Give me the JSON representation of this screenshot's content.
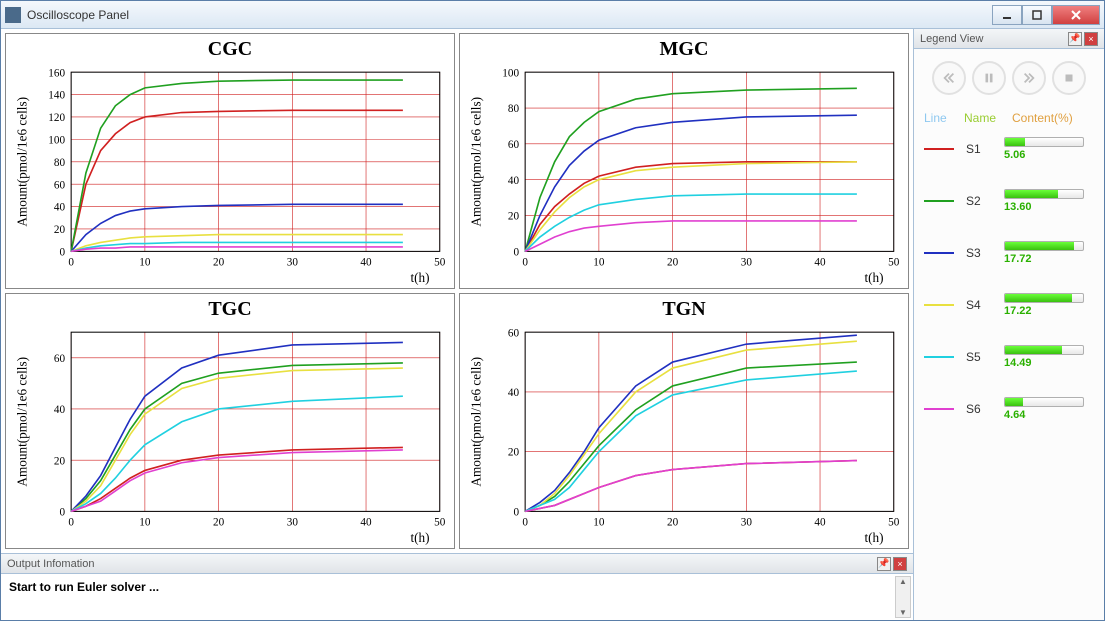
{
  "window": {
    "title": "Oscilloscope Panel"
  },
  "series_colors": {
    "S1": "#d02020",
    "S2": "#20a020",
    "S3": "#2030c0",
    "S4": "#e8e040",
    "S5": "#20d0e0",
    "S6": "#e040d0"
  },
  "charts": [
    {
      "id": "cgc",
      "title": "CGC",
      "xlabel": "t(h)",
      "ylabel": "Amount(pmol/1e6 cells)",
      "xlim": [
        0,
        50
      ],
      "xtick_step": 10,
      "ylim": [
        0,
        160
      ],
      "ytick_step": 20,
      "series": {
        "S1": [
          [
            0,
            0
          ],
          [
            2,
            60
          ],
          [
            4,
            90
          ],
          [
            6,
            105
          ],
          [
            8,
            115
          ],
          [
            10,
            120
          ],
          [
            15,
            124
          ],
          [
            20,
            125
          ],
          [
            30,
            126
          ],
          [
            45,
            126
          ]
        ],
        "S2": [
          [
            0,
            0
          ],
          [
            2,
            70
          ],
          [
            4,
            110
          ],
          [
            6,
            130
          ],
          [
            8,
            140
          ],
          [
            10,
            146
          ],
          [
            15,
            150
          ],
          [
            20,
            152
          ],
          [
            30,
            153
          ],
          [
            45,
            153
          ]
        ],
        "S3": [
          [
            0,
            0
          ],
          [
            2,
            15
          ],
          [
            4,
            25
          ],
          [
            6,
            32
          ],
          [
            8,
            36
          ],
          [
            10,
            38
          ],
          [
            15,
            40
          ],
          [
            20,
            41
          ],
          [
            30,
            42
          ],
          [
            45,
            42
          ]
        ],
        "S4": [
          [
            0,
            0
          ],
          [
            2,
            5
          ],
          [
            4,
            8
          ],
          [
            6,
            10
          ],
          [
            8,
            12
          ],
          [
            10,
            13
          ],
          [
            15,
            14
          ],
          [
            20,
            15
          ],
          [
            30,
            15
          ],
          [
            45,
            15
          ]
        ],
        "S5": [
          [
            0,
            0
          ],
          [
            2,
            3
          ],
          [
            4,
            5
          ],
          [
            6,
            6
          ],
          [
            8,
            7
          ],
          [
            10,
            7
          ],
          [
            15,
            8
          ],
          [
            20,
            8
          ],
          [
            30,
            8
          ],
          [
            45,
            8
          ]
        ],
        "S6": [
          [
            0,
            0
          ],
          [
            2,
            2
          ],
          [
            4,
            3
          ],
          [
            6,
            3
          ],
          [
            8,
            4
          ],
          [
            10,
            4
          ],
          [
            15,
            4
          ],
          [
            20,
            4
          ],
          [
            30,
            4
          ],
          [
            45,
            4
          ]
        ]
      }
    },
    {
      "id": "mgc",
      "title": "MGC",
      "xlabel": "t(h)",
      "ylabel": "Amount(pmol/1e6 cells)",
      "xlim": [
        0,
        50
      ],
      "xtick_step": 10,
      "ylim": [
        0,
        100
      ],
      "ytick_step": 20,
      "series": {
        "S1": [
          [
            0,
            0
          ],
          [
            2,
            15
          ],
          [
            4,
            25
          ],
          [
            6,
            32
          ],
          [
            8,
            38
          ],
          [
            10,
            42
          ],
          [
            15,
            47
          ],
          [
            20,
            49
          ],
          [
            30,
            50
          ],
          [
            45,
            50
          ]
        ],
        "S2": [
          [
            0,
            0
          ],
          [
            2,
            30
          ],
          [
            4,
            50
          ],
          [
            6,
            64
          ],
          [
            8,
            72
          ],
          [
            10,
            78
          ],
          [
            15,
            85
          ],
          [
            20,
            88
          ],
          [
            30,
            90
          ],
          [
            45,
            91
          ]
        ],
        "S3": [
          [
            0,
            0
          ],
          [
            2,
            20
          ],
          [
            4,
            36
          ],
          [
            6,
            48
          ],
          [
            8,
            56
          ],
          [
            10,
            62
          ],
          [
            15,
            69
          ],
          [
            20,
            72
          ],
          [
            30,
            75
          ],
          [
            45,
            76
          ]
        ],
        "S4": [
          [
            0,
            0
          ],
          [
            2,
            12
          ],
          [
            4,
            22
          ],
          [
            6,
            30
          ],
          [
            8,
            36
          ],
          [
            10,
            40
          ],
          [
            15,
            45
          ],
          [
            20,
            47
          ],
          [
            30,
            49
          ],
          [
            45,
            50
          ]
        ],
        "S5": [
          [
            0,
            0
          ],
          [
            2,
            8
          ],
          [
            4,
            14
          ],
          [
            6,
            19
          ],
          [
            8,
            23
          ],
          [
            10,
            26
          ],
          [
            15,
            29
          ],
          [
            20,
            31
          ],
          [
            30,
            32
          ],
          [
            45,
            32
          ]
        ],
        "S6": [
          [
            0,
            0
          ],
          [
            2,
            4
          ],
          [
            4,
            8
          ],
          [
            6,
            11
          ],
          [
            8,
            13
          ],
          [
            10,
            14
          ],
          [
            15,
            16
          ],
          [
            20,
            17
          ],
          [
            30,
            17
          ],
          [
            45,
            17
          ]
        ]
      }
    },
    {
      "id": "tgc",
      "title": "TGC",
      "xlabel": "t(h)",
      "ylabel": "Amount(pmol/1e6 cells)",
      "xlim": [
        0,
        50
      ],
      "xtick_step": 10,
      "ylim": [
        0,
        70
      ],
      "ytick_step": 20,
      "series": {
        "S1": [
          [
            0,
            0
          ],
          [
            2,
            2
          ],
          [
            4,
            5
          ],
          [
            6,
            9
          ],
          [
            8,
            13
          ],
          [
            10,
            16
          ],
          [
            15,
            20
          ],
          [
            20,
            22
          ],
          [
            30,
            24
          ],
          [
            45,
            25
          ]
        ],
        "S2": [
          [
            0,
            0
          ],
          [
            2,
            5
          ],
          [
            4,
            12
          ],
          [
            6,
            22
          ],
          [
            8,
            32
          ],
          [
            10,
            40
          ],
          [
            15,
            50
          ],
          [
            20,
            54
          ],
          [
            30,
            57
          ],
          [
            45,
            58
          ]
        ],
        "S3": [
          [
            0,
            0
          ],
          [
            2,
            6
          ],
          [
            4,
            14
          ],
          [
            6,
            25
          ],
          [
            8,
            36
          ],
          [
            10,
            45
          ],
          [
            15,
            56
          ],
          [
            20,
            61
          ],
          [
            30,
            65
          ],
          [
            45,
            66
          ]
        ],
        "S4": [
          [
            0,
            0
          ],
          [
            2,
            4
          ],
          [
            4,
            10
          ],
          [
            6,
            20
          ],
          [
            8,
            30
          ],
          [
            10,
            38
          ],
          [
            15,
            48
          ],
          [
            20,
            52
          ],
          [
            30,
            55
          ],
          [
            45,
            56
          ]
        ],
        "S5": [
          [
            0,
            0
          ],
          [
            2,
            3
          ],
          [
            4,
            7
          ],
          [
            6,
            13
          ],
          [
            8,
            20
          ],
          [
            10,
            26
          ],
          [
            15,
            35
          ],
          [
            20,
            40
          ],
          [
            30,
            43
          ],
          [
            45,
            45
          ]
        ],
        "S6": [
          [
            0,
            0
          ],
          [
            2,
            2
          ],
          [
            4,
            4
          ],
          [
            6,
            8
          ],
          [
            8,
            12
          ],
          [
            10,
            15
          ],
          [
            15,
            19
          ],
          [
            20,
            21
          ],
          [
            30,
            23
          ],
          [
            45,
            24
          ]
        ]
      }
    },
    {
      "id": "tgn",
      "title": "TGN",
      "xlabel": "t(h)",
      "ylabel": "Amount(pmol/1e6 cells)",
      "xlim": [
        0,
        50
      ],
      "xtick_step": 10,
      "ylim": [
        0,
        60
      ],
      "ytick_step": 20,
      "series": {
        "S1": [
          [
            0,
            0
          ],
          [
            2,
            1
          ],
          [
            4,
            2
          ],
          [
            6,
            4
          ],
          [
            8,
            6
          ],
          [
            10,
            8
          ],
          [
            15,
            12
          ],
          [
            20,
            14
          ],
          [
            30,
            16
          ],
          [
            45,
            17
          ]
        ],
        "S2": [
          [
            0,
            0
          ],
          [
            2,
            2
          ],
          [
            4,
            5
          ],
          [
            6,
            10
          ],
          [
            8,
            16
          ],
          [
            10,
            22
          ],
          [
            15,
            34
          ],
          [
            20,
            42
          ],
          [
            30,
            48
          ],
          [
            45,
            50
          ]
        ],
        "S3": [
          [
            0,
            0
          ],
          [
            2,
            3
          ],
          [
            4,
            7
          ],
          [
            6,
            13
          ],
          [
            8,
            20
          ],
          [
            10,
            28
          ],
          [
            15,
            42
          ],
          [
            20,
            50
          ],
          [
            30,
            56
          ],
          [
            45,
            59
          ]
        ],
        "S4": [
          [
            0,
            0
          ],
          [
            2,
            2
          ],
          [
            4,
            6
          ],
          [
            6,
            12
          ],
          [
            8,
            19
          ],
          [
            10,
            26
          ],
          [
            15,
            40
          ],
          [
            20,
            48
          ],
          [
            30,
            54
          ],
          [
            45,
            57
          ]
        ],
        "S5": [
          [
            0,
            0
          ],
          [
            2,
            2
          ],
          [
            4,
            4
          ],
          [
            6,
            8
          ],
          [
            8,
            14
          ],
          [
            10,
            20
          ],
          [
            15,
            32
          ],
          [
            20,
            39
          ],
          [
            30,
            44
          ],
          [
            45,
            47
          ]
        ],
        "S6": [
          [
            0,
            0
          ],
          [
            2,
            1
          ],
          [
            4,
            2
          ],
          [
            6,
            4
          ],
          [
            8,
            6
          ],
          [
            10,
            8
          ],
          [
            15,
            12
          ],
          [
            20,
            14
          ],
          [
            30,
            16
          ],
          [
            45,
            17
          ]
        ]
      }
    }
  ],
  "legend": {
    "title": "Legend View",
    "columns": {
      "line": "Line",
      "name": "Name",
      "content": "Content(%)"
    },
    "series": [
      {
        "name": "S1",
        "value": 5.06
      },
      {
        "name": "S2",
        "value": 13.6
      },
      {
        "name": "S3",
        "value": 17.72
      },
      {
        "name": "S4",
        "value": 17.22
      },
      {
        "name": "S5",
        "value": 14.49
      },
      {
        "name": "S6",
        "value": 4.64
      }
    ]
  },
  "output": {
    "title": "Output Infomation",
    "text": "Start to run Euler solver ..."
  },
  "chart_style": {
    "grid_color": "#d02020",
    "axis_color": "#000000",
    "background": "#ffffff",
    "line_width": 1.6,
    "title_fontsize": 20,
    "label_fontsize": 13,
    "tick_fontsize": 11
  }
}
